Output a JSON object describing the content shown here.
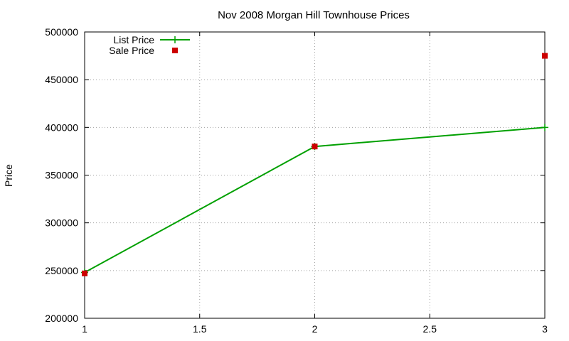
{
  "chart_data": {
    "type": "line",
    "title": "Nov 2008 Morgan Hill Townhouse Prices",
    "ylabel": "Price",
    "xlabel": "",
    "xlim": [
      1,
      3
    ],
    "ylim": [
      200000,
      500000
    ],
    "x_ticks": [
      "1",
      "1.5",
      "2",
      "2.5",
      "3"
    ],
    "y_ticks": [
      "200000",
      "250000",
      "300000",
      "350000",
      "400000",
      "450000",
      "500000"
    ],
    "grid": true,
    "legend_position": "top-left",
    "series": [
      {
        "name": "List Price",
        "style": "lines+points",
        "color": "#00a000",
        "marker": "plus",
        "x": [
          1,
          2,
          3
        ],
        "y": [
          248000,
          380000,
          400000
        ]
      },
      {
        "name": "Sale Price",
        "style": "points",
        "color": "#cc0000",
        "marker": "square",
        "x": [
          1,
          2,
          3
        ],
        "y": [
          247000,
          380000,
          475000
        ]
      }
    ]
  }
}
